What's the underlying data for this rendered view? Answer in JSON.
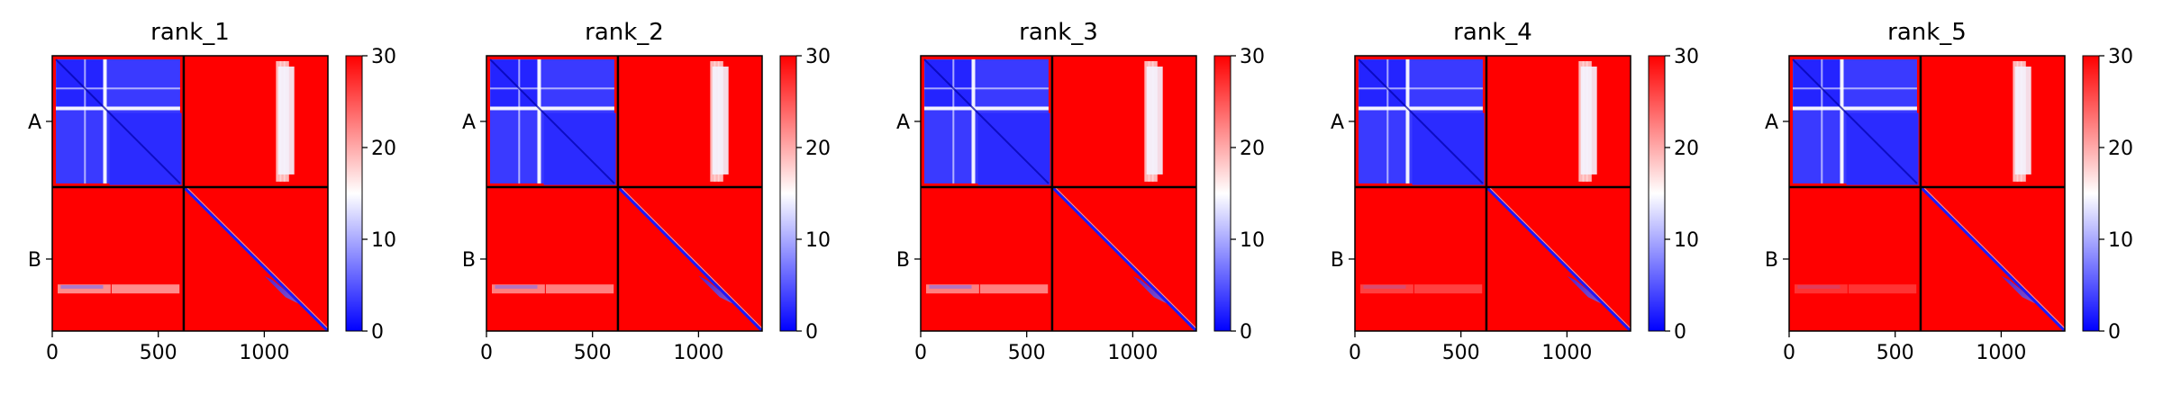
{
  "figure": {
    "panel_titles": [
      "rank_1",
      "rank_2",
      "rank_3",
      "rank_4",
      "rank_5"
    ]
  },
  "chart_data": [
    {
      "type": "heatmap",
      "title": "rank_1",
      "x_ticks": [
        0,
        500,
        1000
      ],
      "x_range": [
        0,
        1300
      ],
      "y_ticks": [
        "A",
        "B"
      ],
      "chain_boundary": 620,
      "colorbar": {
        "ticks": [
          0,
          10,
          20,
          30
        ],
        "range": [
          0,
          30
        ],
        "colormap": [
          "#0000ff",
          "#ffffff",
          "#ff0000"
        ]
      },
      "b_chain_band_intensity": 0.55
    },
    {
      "type": "heatmap",
      "title": "rank_2",
      "x_ticks": [
        0,
        500,
        1000
      ],
      "x_range": [
        0,
        1300
      ],
      "y_ticks": [
        "A",
        "B"
      ],
      "chain_boundary": 620,
      "colorbar": {
        "ticks": [
          0,
          10,
          20,
          30
        ],
        "range": [
          0,
          30
        ],
        "colormap": [
          "#0000ff",
          "#ffffff",
          "#ff0000"
        ]
      },
      "b_chain_band_intensity": 0.5
    },
    {
      "type": "heatmap",
      "title": "rank_3",
      "x_ticks": [
        0,
        500,
        1000
      ],
      "x_range": [
        0,
        1300
      ],
      "y_ticks": [
        "A",
        "B"
      ],
      "chain_boundary": 620,
      "colorbar": {
        "ticks": [
          0,
          10,
          20,
          30
        ],
        "range": [
          0,
          30
        ],
        "colormap": [
          "#0000ff",
          "#ffffff",
          "#ff0000"
        ]
      },
      "b_chain_band_intensity": 0.5
    },
    {
      "type": "heatmap",
      "title": "rank_4",
      "x_ticks": [
        0,
        500,
        1000
      ],
      "x_range": [
        0,
        1300
      ],
      "y_ticks": [
        "A",
        "B"
      ],
      "chain_boundary": 620,
      "colorbar": {
        "ticks": [
          0,
          10,
          20,
          30
        ],
        "range": [
          0,
          30
        ],
        "colormap": [
          "#0000ff",
          "#ffffff",
          "#ff0000"
        ]
      },
      "b_chain_band_intensity": 0.25
    },
    {
      "type": "heatmap",
      "title": "rank_5",
      "x_ticks": [
        0,
        500,
        1000
      ],
      "x_range": [
        0,
        1300
      ],
      "y_ticks": [
        "A",
        "B"
      ],
      "chain_boundary": 620,
      "colorbar": {
        "ticks": [
          0,
          10,
          20,
          30
        ],
        "range": [
          0,
          30
        ],
        "colormap": [
          "#0000ff",
          "#ffffff",
          "#ff0000"
        ]
      },
      "b_chain_band_intensity": 0.2
    }
  ]
}
